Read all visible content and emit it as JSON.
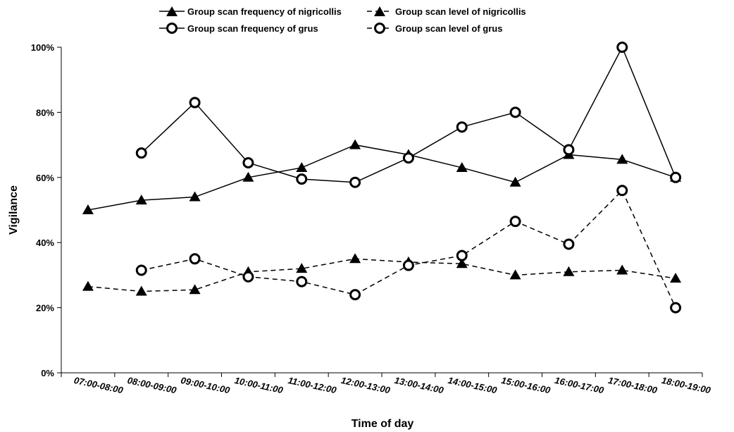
{
  "chart_data": {
    "type": "line",
    "xlabel": "Time of day",
    "ylabel": "Vigilance",
    "ylim": [
      0,
      100
    ],
    "y_ticks": [
      "0%",
      "20%",
      "40%",
      "60%",
      "80%",
      "100%"
    ],
    "categories": [
      "07:00-08:00",
      "08:00-09:00",
      "09:00-10:00",
      "10:00-11:00",
      "11:00-12:00",
      "12:00-13:00",
      "13:00-14:00",
      "14:00-15:00",
      "15:00-16:00",
      "16:00-17:00",
      "17:00-18:00",
      "18:00-19:00"
    ],
    "grid": false,
    "legend_position": "top",
    "series": [
      {
        "name": "Group scan frequency of nigricollis",
        "marker": "triangle",
        "line": "solid",
        "values": [
          50,
          53,
          54,
          60,
          63,
          70,
          67,
          63,
          58.5,
          67,
          65.5,
          60
        ]
      },
      {
        "name": "Group scan level of nigricollis",
        "marker": "triangle",
        "line": "dashed",
        "values": [
          26.5,
          25,
          25.5,
          31,
          32,
          35,
          34,
          33.5,
          30,
          31,
          31.5,
          29
        ]
      },
      {
        "name": "Group scan frequency of grus",
        "marker": "circle",
        "line": "solid",
        "values": [
          null,
          67.5,
          83,
          64.5,
          59.5,
          58.5,
          66,
          75.5,
          80,
          68.5,
          100,
          60
        ]
      },
      {
        "name": "Group scan level of grus",
        "marker": "circle",
        "line": "dashed",
        "values": [
          null,
          31.5,
          35,
          29.5,
          28,
          24,
          33,
          36,
          46.5,
          39.5,
          56,
          20
        ]
      }
    ]
  }
}
